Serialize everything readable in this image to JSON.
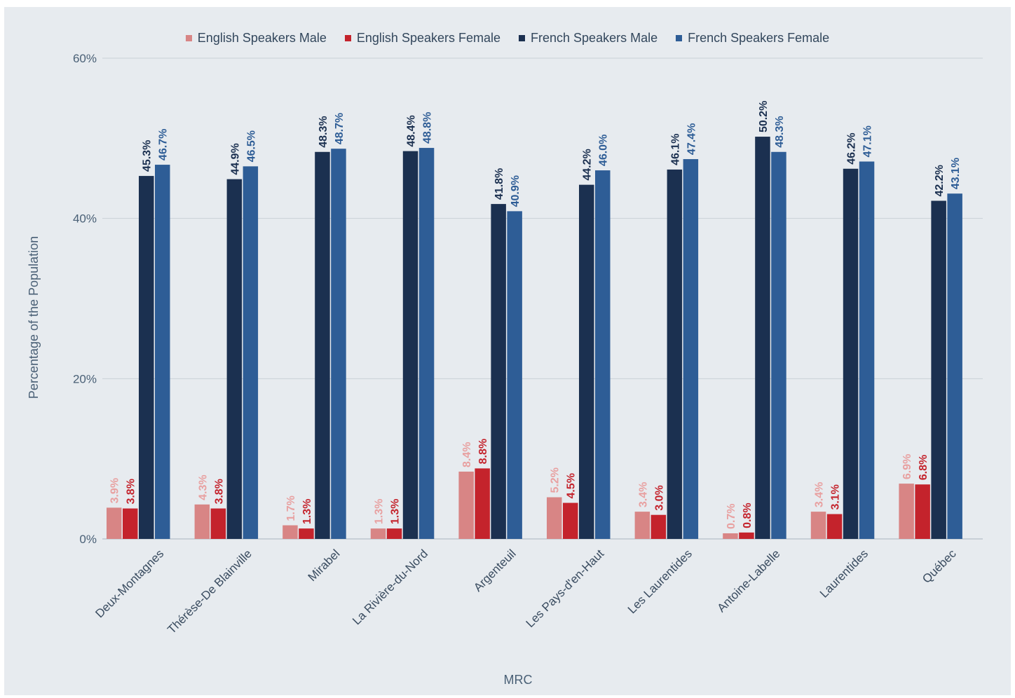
{
  "chart_data": {
    "type": "bar",
    "title": "",
    "xlabel": "MRC",
    "ylabel": "Percentage of the Population",
    "ylim": [
      0,
      60
    ],
    "yticks": [
      "0%",
      "20%",
      "40%",
      "60%"
    ],
    "ytick_values": [
      0,
      20,
      40,
      60
    ],
    "grid": true,
    "legend_position": "top",
    "categories": [
      "Deux-Montagnes",
      "Thérèse-De Blainville",
      "Mirabel",
      "La Rivière-du-Nord",
      "Argenteuil",
      "Les Pays-d'en-Haut",
      "Les Laurentides",
      "Antoine-Labelle",
      "Laurentides",
      "Québec"
    ],
    "series": [
      {
        "name": "English Speakers Male",
        "color": "#d88585",
        "label_color": "#e8a0a0",
        "values": [
          3.9,
          4.3,
          1.7,
          1.3,
          8.4,
          5.2,
          3.4,
          0.7,
          3.4,
          6.9
        ],
        "labels": [
          "3.9%",
          "4.3%",
          "1.7%",
          "1.3%",
          "8.4%",
          "5.2%",
          "3.4%",
          "0.7%",
          "3.4%",
          "6.9%"
        ]
      },
      {
        "name": "English Speakers Female",
        "color": "#c4232c",
        "label_color": "#c4232c",
        "values": [
          3.8,
          3.8,
          1.3,
          1.3,
          8.8,
          4.5,
          3.0,
          0.8,
          3.1,
          6.8
        ],
        "labels": [
          "3.8%",
          "3.8%",
          "1.3%",
          "1.3%",
          "8.8%",
          "4.5%",
          "3.0%",
          "0.8%",
          "3.1%",
          "6.8%"
        ]
      },
      {
        "name": "French Speakers Male",
        "color": "#1b3050",
        "label_color": "#1b3050",
        "values": [
          45.3,
          44.9,
          48.3,
          48.4,
          41.8,
          44.2,
          46.1,
          50.2,
          46.2,
          42.2
        ],
        "labels": [
          "45.3%",
          "44.9%",
          "48.3%",
          "48.4%",
          "41.8%",
          "44.2%",
          "46.1%",
          "50.2%",
          "46.2%",
          "42.2%"
        ]
      },
      {
        "name": "French Speakers Female",
        "color": "#2e5d96",
        "label_color": "#2e5d96",
        "values": [
          46.7,
          46.5,
          48.7,
          48.8,
          40.9,
          46.0,
          47.4,
          48.3,
          47.1,
          43.1
        ],
        "labels": [
          "46.7%",
          "46.5%",
          "48.7%",
          "48.8%",
          "40.9%",
          "46.0%",
          "47.4%",
          "48.3%",
          "47.1%",
          "43.1%"
        ]
      }
    ]
  }
}
